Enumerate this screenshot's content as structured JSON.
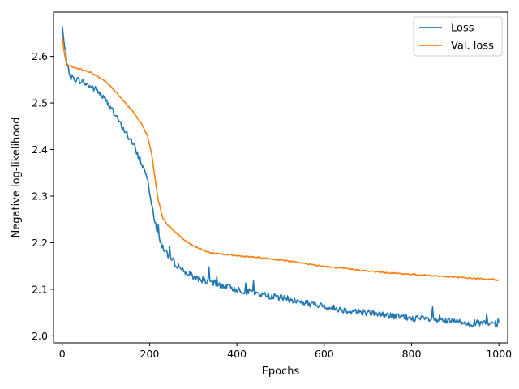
{
  "chart_data": {
    "type": "line",
    "title": "",
    "xlabel": "Epochs",
    "ylabel": "Negative log-likelihood",
    "xlim": [
      -20,
      1020
    ],
    "ylim": [
      1.985,
      2.695
    ],
    "xticks": [
      0,
      200,
      400,
      600,
      800,
      1000
    ],
    "yticks": [
      2.0,
      2.1,
      2.2,
      2.3,
      2.4,
      2.5,
      2.6
    ],
    "ytick_labels": [
      "2.0",
      "2.1",
      "2.2",
      "2.3",
      "2.4",
      "2.5",
      "2.6"
    ],
    "grid": false,
    "legend": "top-right",
    "series": [
      {
        "name": "Loss",
        "color": "#1f77b4",
        "x": [
          0,
          10,
          20,
          40,
          60,
          80,
          100,
          120,
          140,
          160,
          180,
          195,
          205,
          215,
          225,
          240,
          260,
          280,
          300,
          330,
          360,
          400,
          450,
          500,
          550,
          600,
          650,
          700,
          750,
          800,
          850,
          900,
          950,
          1000
        ],
        "y": [
          2.665,
          2.58,
          2.555,
          2.548,
          2.538,
          2.527,
          2.505,
          2.475,
          2.445,
          2.415,
          2.375,
          2.34,
          2.28,
          2.235,
          2.2,
          2.175,
          2.155,
          2.138,
          2.127,
          2.118,
          2.11,
          2.1,
          2.09,
          2.082,
          2.072,
          2.063,
          2.055,
          2.05,
          2.043,
          2.038,
          2.034,
          2.03,
          2.027,
          2.025
        ],
        "noise": 0.007
      },
      {
        "name": "Val. loss",
        "color": "#ff7f0e",
        "x": [
          0,
          5,
          10,
          20,
          40,
          60,
          80,
          100,
          120,
          140,
          160,
          180,
          195,
          205,
          212,
          220,
          230,
          240,
          260,
          280,
          300,
          320,
          340,
          360,
          400,
          450,
          500,
          550,
          600,
          650,
          700,
          750,
          800,
          850,
          900,
          950,
          1000
        ],
        "y": [
          2.643,
          2.605,
          2.585,
          2.578,
          2.573,
          2.567,
          2.558,
          2.545,
          2.527,
          2.505,
          2.483,
          2.458,
          2.43,
          2.39,
          2.34,
          2.29,
          2.255,
          2.24,
          2.222,
          2.205,
          2.193,
          2.185,
          2.178,
          2.176,
          2.172,
          2.168,
          2.163,
          2.156,
          2.149,
          2.144,
          2.139,
          2.135,
          2.132,
          2.129,
          2.126,
          2.123,
          2.12
        ],
        "noise": 0.0015
      }
    ]
  }
}
